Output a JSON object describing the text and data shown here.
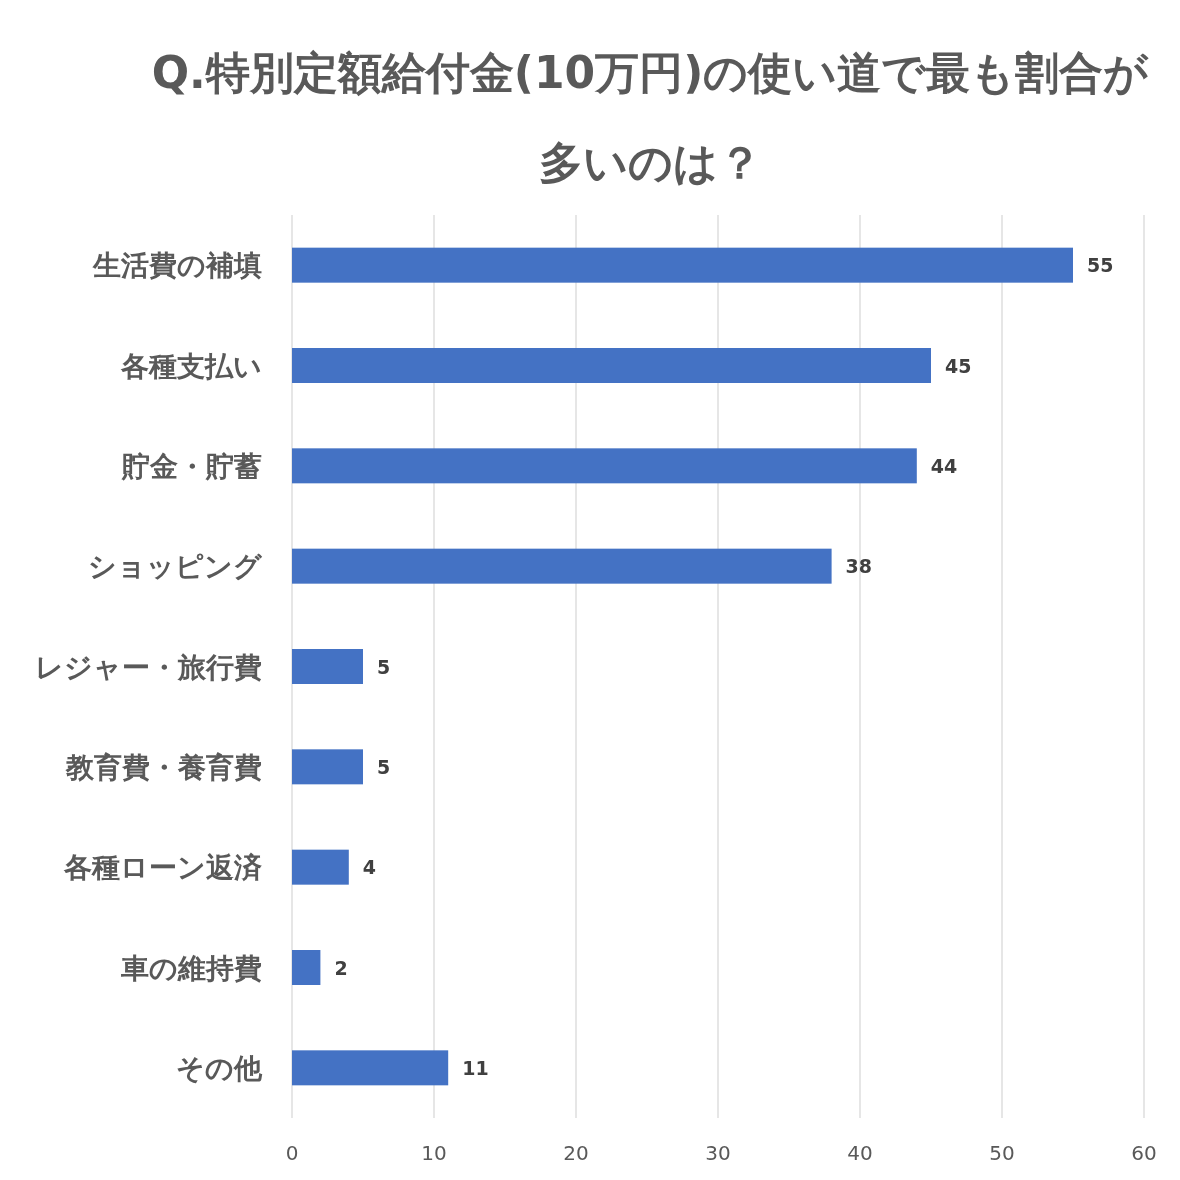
{
  "chart_data": {
    "type": "bar",
    "orientation": "horizontal",
    "title": "Q.特別定額給付金(10万円)の使い道で最も割合が多いのは？",
    "categories": [
      "生活費の補填",
      "各種支払い",
      "貯金・貯蓄",
      "ショッピング",
      "レジャー・旅行費",
      "教育費・養育費",
      "各種ローン返済",
      "車の維持費",
      "その他"
    ],
    "values": [
      55,
      45,
      44,
      38,
      5,
      5,
      4,
      2,
      11
    ],
    "color": "#4472c4",
    "xlim": [
      0,
      60
    ],
    "xticks": [
      0,
      10,
      20,
      30,
      40,
      50,
      60
    ],
    "grid": "x",
    "data_labels": true
  }
}
